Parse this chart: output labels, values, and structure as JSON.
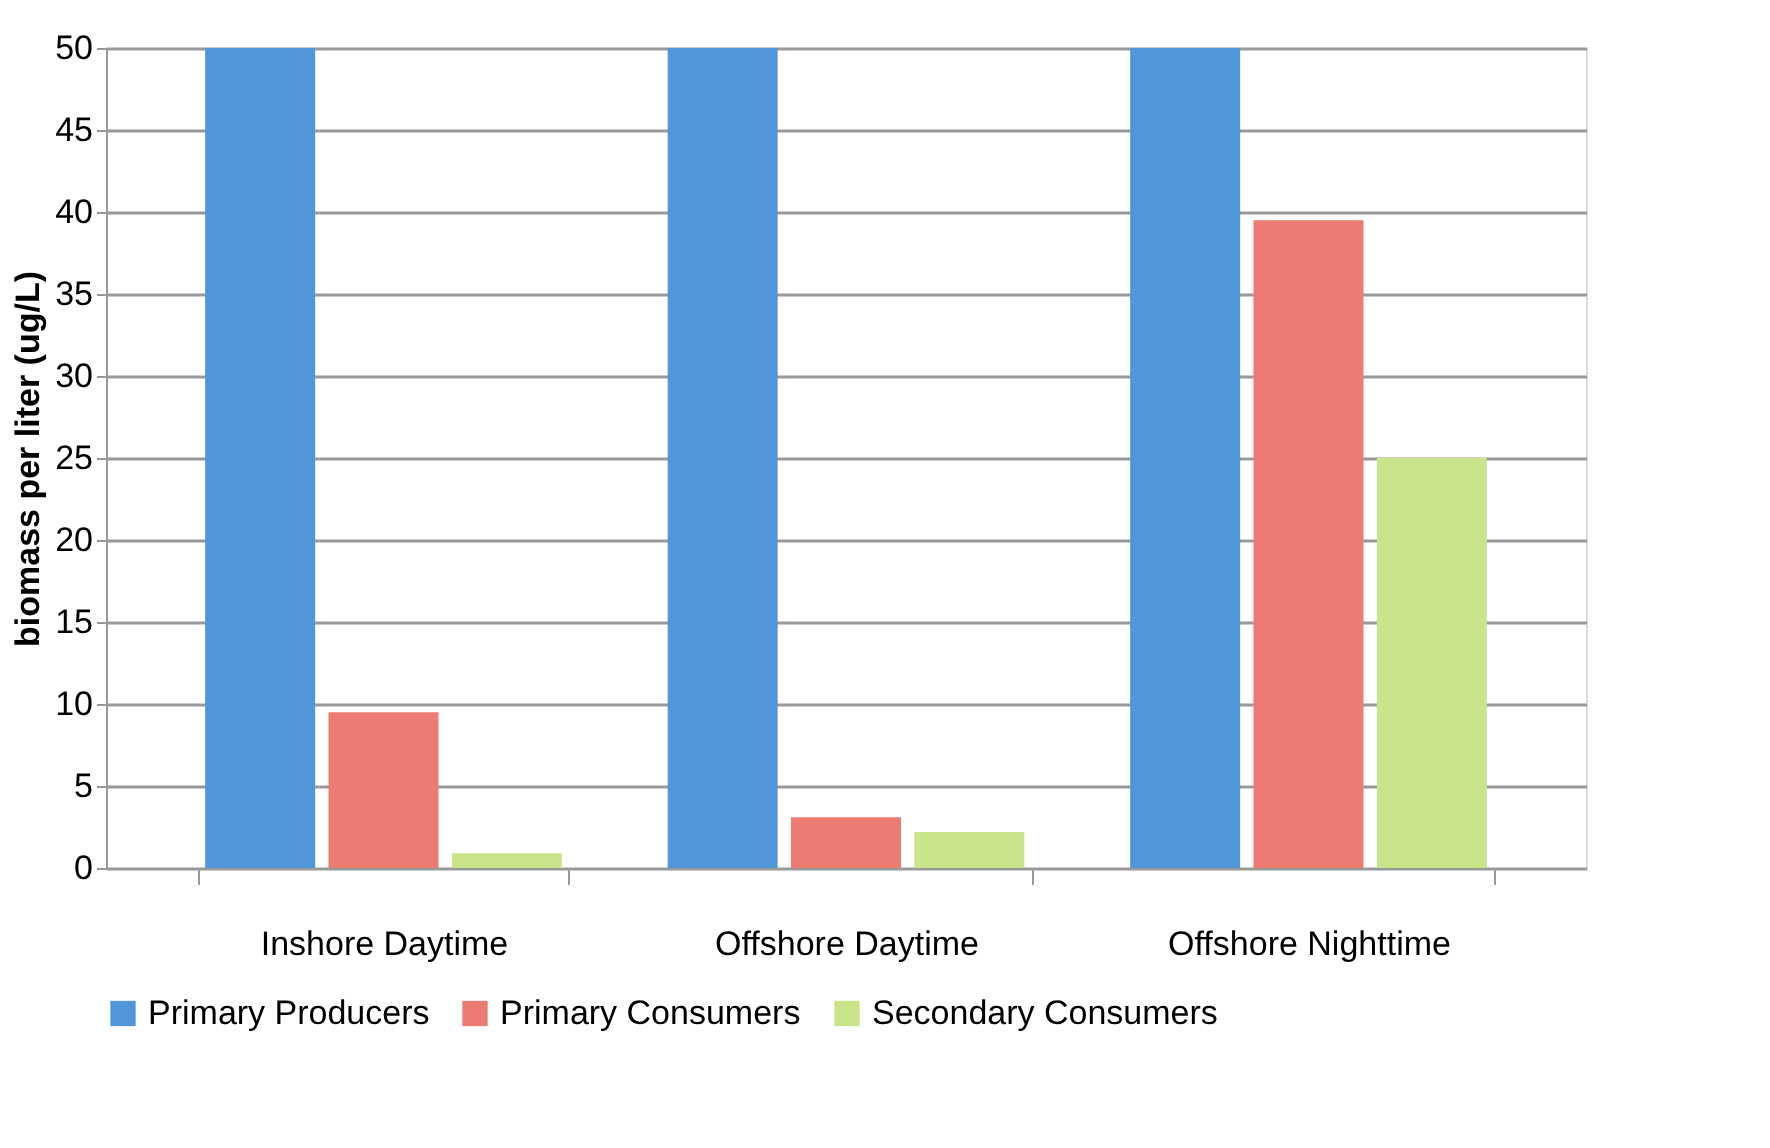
{
  "chart_data": {
    "type": "bar",
    "ylabel": "biomass per liter (ug/L)",
    "categories": [
      "Inshore Daytime",
      "Offshore Daytime",
      "Offshore Nighttime"
    ],
    "series": [
      {
        "name": "Primary Producers",
        "color": "#5096d8",
        "values": [
          50,
          50,
          50
        ]
      },
      {
        "name": "Primary Consumers",
        "color": "#ec7b72",
        "values": [
          9.5,
          3.1,
          39.5
        ]
      },
      {
        "name": "Secondary Consumers",
        "color": "#c9e58a",
        "values": [
          0.9,
          2.2,
          25
        ]
      }
    ],
    "ylim": [
      0,
      50
    ],
    "yticks": [
      0,
      5,
      10,
      15,
      20,
      25,
      30,
      35,
      40,
      45,
      50
    ],
    "grid": "y",
    "legend": "bottom"
  }
}
